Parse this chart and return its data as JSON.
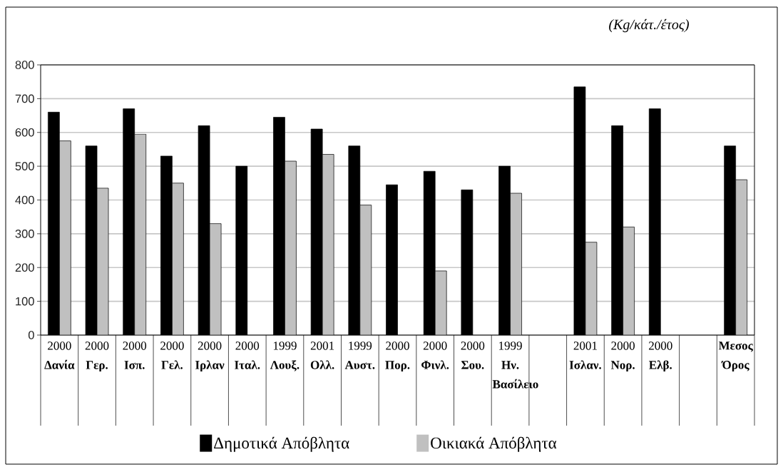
{
  "chart_data": {
    "type": "bar",
    "ylabel": "(Kg/κάτ./έτος)",
    "categories": [
      "2000 **Δανία**",
      "2000 **Γερ.**",
      "2000 **Ισπ.**",
      "2000 **Γελ.**",
      "2000 **Ιρλαν**",
      "2000 **Ιταλ.**",
      "1999 **Λουξ.**",
      "2001 **Ολλ.**",
      "1999 **Αυστ.**",
      "2000 **Πορ.**",
      "2000 **Φινλ.**",
      "2000 **Σου.**",
      "1999 **Ην. Βασίλειο**",
      null,
      "2001 **Ισλαν.**",
      "2000 **Νορ.**",
      "2000 **Ελβ.**",
      null,
      "**Μεσος Όρος**"
    ],
    "series": [
      {
        "name": "Δημοτικά Απόβλητα",
        "color": "#000000",
        "values": [
          660,
          560,
          670,
          530,
          620,
          500,
          645,
          610,
          560,
          445,
          485,
          430,
          500,
          null,
          735,
          620,
          670,
          null,
          560
        ]
      },
      {
        "name": "Οικιακά Απόβλητα",
        "color": "#c0c0c0",
        "values": [
          575,
          435,
          595,
          450,
          330,
          null,
          515,
          535,
          385,
          null,
          190,
          null,
          420,
          null,
          275,
          320,
          null,
          null,
          460
        ]
      }
    ],
    "ylim": [
      0,
      800
    ],
    "yticks": [
      0,
      100,
      200,
      300,
      400,
      500,
      600,
      700,
      800
    ],
    "grid": "y",
    "legend": "bottom"
  }
}
